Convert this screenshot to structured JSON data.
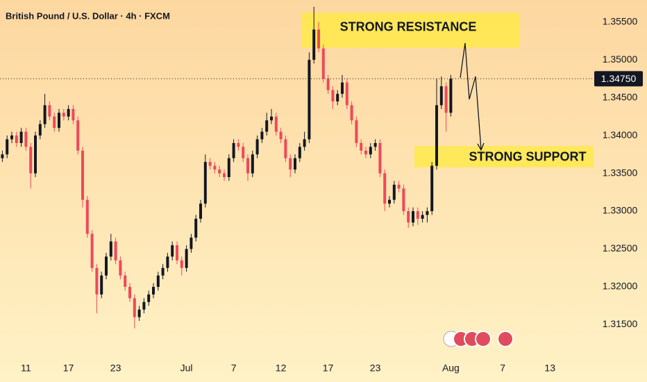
{
  "chart_data": {
    "type": "candlestick",
    "title": "British Pound / U.S. Dollar · 4h · FXCM",
    "up_color": "#131722",
    "down_color": "#f0485a",
    "open": [
      1.337,
      1.3375,
      1.3395,
      1.34,
      1.339,
      1.3405,
      1.3385,
      1.335,
      1.34,
      1.3415,
      1.344,
      1.3425,
      1.341,
      1.343,
      1.3425,
      1.3435,
      1.342,
      1.338,
      1.3315,
      1.327,
      1.3225,
      1.319,
      1.3215,
      1.324,
      1.326,
      1.3235,
      1.3215,
      1.32,
      1.3185,
      1.316,
      1.317,
      1.318,
      1.319,
      1.32,
      1.3215,
      1.3225,
      1.324,
      1.3255,
      1.3235,
      1.3225,
      1.325,
      1.3265,
      1.329,
      1.331,
      1.3365,
      1.336,
      1.3355,
      1.335,
      1.3345,
      1.337,
      1.339,
      1.3385,
      1.337,
      1.335,
      1.3375,
      1.3395,
      1.3405,
      1.342,
      1.3425,
      1.3405,
      1.3395,
      1.337,
      1.3355,
      1.337,
      1.3385,
      1.3395,
      1.35,
      1.354,
      1.3515,
      1.3475,
      1.346,
      1.3445,
      1.3455,
      1.347,
      1.344,
      1.342,
      1.339,
      1.338,
      1.3375,
      1.3385,
      1.339,
      1.335,
      1.331,
      1.3315,
      1.3335,
      1.333,
      1.33,
      1.3285,
      1.33,
      1.329,
      1.3295,
      1.33,
      1.336,
      1.344,
      1.3465,
      1.343
    ],
    "high": [
      1.338,
      1.34,
      1.3405,
      1.3405,
      1.341,
      1.341,
      1.339,
      1.3405,
      1.342,
      1.3455,
      1.3445,
      1.343,
      1.3435,
      1.3435,
      1.344,
      1.344,
      1.3425,
      1.3385,
      1.332,
      1.3275,
      1.323,
      1.322,
      1.3245,
      1.327,
      1.3265,
      1.324,
      1.322,
      1.3205,
      1.319,
      1.3175,
      1.3185,
      1.3195,
      1.3205,
      1.322,
      1.323,
      1.3245,
      1.326,
      1.326,
      1.324,
      1.3255,
      1.327,
      1.3295,
      1.3315,
      1.3375,
      1.337,
      1.3365,
      1.336,
      1.3355,
      1.3375,
      1.3395,
      1.3395,
      1.339,
      1.3375,
      1.338,
      1.34,
      1.341,
      1.343,
      1.3435,
      1.343,
      1.341,
      1.34,
      1.3375,
      1.3375,
      1.339,
      1.3405,
      1.351,
      1.357,
      1.355,
      1.352,
      1.348,
      1.3465,
      1.346,
      1.348,
      1.3475,
      1.3445,
      1.3425,
      1.3395,
      1.3385,
      1.339,
      1.3395,
      1.3395,
      1.3355,
      1.332,
      1.334,
      1.334,
      1.3335,
      1.3305,
      1.3305,
      1.3305,
      1.33,
      1.3305,
      1.3365,
      1.3475,
      1.3478,
      1.347,
      1.348
    ],
    "low": [
      1.3365,
      1.337,
      1.339,
      1.3385,
      1.3385,
      1.338,
      1.333,
      1.3345,
      1.3395,
      1.341,
      1.342,
      1.3405,
      1.3405,
      1.342,
      1.342,
      1.3415,
      1.3375,
      1.3305,
      1.3265,
      1.322,
      1.3165,
      1.3185,
      1.321,
      1.3235,
      1.323,
      1.321,
      1.3195,
      1.318,
      1.3145,
      1.3155,
      1.3165,
      1.3175,
      1.3185,
      1.3195,
      1.321,
      1.322,
      1.3235,
      1.323,
      1.3215,
      1.322,
      1.3245,
      1.326,
      1.3285,
      1.3305,
      1.3355,
      1.335,
      1.3345,
      1.334,
      1.334,
      1.3365,
      1.338,
      1.3365,
      1.334,
      1.3345,
      1.337,
      1.339,
      1.34,
      1.3415,
      1.34,
      1.339,
      1.3365,
      1.3345,
      1.335,
      1.3365,
      1.338,
      1.339,
      1.3495,
      1.351,
      1.347,
      1.3455,
      1.3435,
      1.344,
      1.345,
      1.3435,
      1.3415,
      1.3385,
      1.3375,
      1.337,
      1.337,
      1.338,
      1.3345,
      1.33,
      1.3305,
      1.331,
      1.3325,
      1.3295,
      1.3278,
      1.328,
      1.3282,
      1.3285,
      1.3285,
      1.3295,
      1.3355,
      1.3435,
      1.3405,
      1.3425
    ],
    "close": [
      1.3375,
      1.3395,
      1.34,
      1.339,
      1.3405,
      1.3385,
      1.335,
      1.34,
      1.3415,
      1.344,
      1.3425,
      1.341,
      1.343,
      1.3425,
      1.3435,
      1.342,
      1.338,
      1.3315,
      1.327,
      1.3225,
      1.319,
      1.3215,
      1.324,
      1.326,
      1.3235,
      1.3215,
      1.32,
      1.3185,
      1.316,
      1.317,
      1.318,
      1.319,
      1.32,
      1.3215,
      1.3225,
      1.324,
      1.3255,
      1.3235,
      1.3225,
      1.325,
      1.3265,
      1.329,
      1.331,
      1.3365,
      1.336,
      1.3355,
      1.335,
      1.3345,
      1.337,
      1.339,
      1.3385,
      1.337,
      1.335,
      1.3375,
      1.3395,
      1.3405,
      1.342,
      1.3425,
      1.3405,
      1.3395,
      1.337,
      1.3355,
      1.337,
      1.3385,
      1.3395,
      1.35,
      1.354,
      1.3515,
      1.3475,
      1.346,
      1.3445,
      1.3455,
      1.347,
      1.344,
      1.342,
      1.339,
      1.338,
      1.3375,
      1.3385,
      1.339,
      1.335,
      1.331,
      1.3315,
      1.3335,
      1.333,
      1.33,
      1.3285,
      1.33,
      1.329,
      1.3295,
      1.33,
      1.336,
      1.344,
      1.3465,
      1.343,
      1.3475
    ],
    "xlim": [
      -0.5,
      124.5
    ],
    "xticks": [
      {
        "value": 5,
        "label": "11"
      },
      {
        "value": 14,
        "label": "17"
      },
      {
        "value": 24,
        "label": "23"
      },
      {
        "value": 39,
        "label": "Jul"
      },
      {
        "value": 49,
        "label": "7"
      },
      {
        "value": 59,
        "label": "12"
      },
      {
        "value": 69,
        "label": "17"
      },
      {
        "value": 79,
        "label": "23"
      },
      {
        "value": 95,
        "label": "Aug"
      },
      {
        "value": 106,
        "label": "7"
      },
      {
        "value": 116,
        "label": "13"
      }
    ],
    "ylim": [
      1.3111,
      1.3579
    ],
    "yticks": [
      {
        "value": 1.315,
        "label": "1.31500"
      },
      {
        "value": 1.32,
        "label": "1.32000"
      },
      {
        "value": 1.325,
        "label": "1.32500"
      },
      {
        "value": 1.33,
        "label": "1.33000"
      },
      {
        "value": 1.335,
        "label": "1.33500"
      },
      {
        "value": 1.34,
        "label": "1.34000"
      },
      {
        "value": 1.345,
        "label": "1.34500"
      },
      {
        "value": 1.35,
        "label": "1.35000"
      },
      {
        "value": 1.355,
        "label": "1.35500"
      }
    ],
    "last_price": {
      "value": 1.3475,
      "label": "1.34750"
    },
    "zones": [
      {
        "label": "STRONG RESISTANCE",
        "range": [
          1.3516,
          1.3562
        ],
        "color": "#ffe94a"
      },
      {
        "label": "STRONG SUPPORT",
        "range": [
          1.3358,
          1.3386
        ],
        "color": "#ffe94a"
      }
    ]
  }
}
